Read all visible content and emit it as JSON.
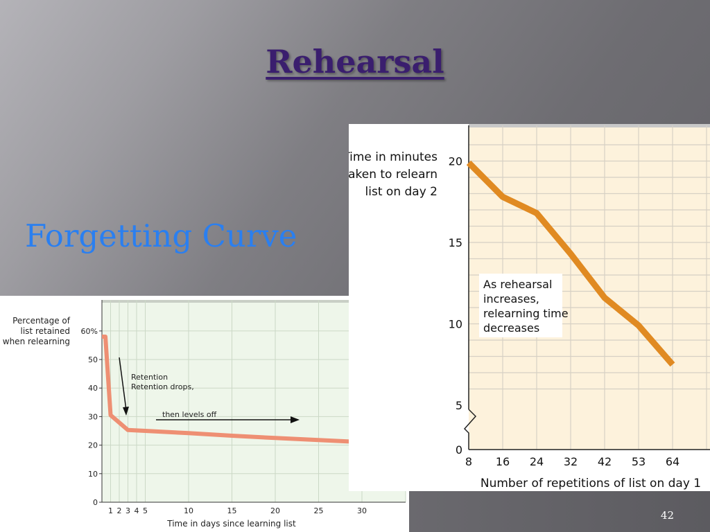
{
  "slide": {
    "title": "Rehearsal",
    "subtitle": "Forgetting Curve",
    "page_number": "42"
  },
  "colors": {
    "title": "#3a1e6e",
    "subtitle": "#2a7ff0",
    "forgetting_curve_line": "#ee8f73",
    "rehearsal_line": "#e08a22",
    "rehearsal_plot_bg": "#fdf2dc",
    "forgetting_plot_bg": "#eef6ea"
  },
  "chart_data": [
    {
      "type": "line",
      "title": "",
      "ylabel": "Percentage of list retained when relearning",
      "xlabel": "Time in days since learning list",
      "ylim": [
        0,
        60
      ],
      "xlim": [
        0,
        30
      ],
      "y_ticks": [
        "0",
        "10",
        "20",
        "30",
        "40",
        "50",
        "60%"
      ],
      "x_ticks": [
        "1",
        "2",
        "3",
        "4",
        "5",
        "10",
        "15",
        "20",
        "25",
        "30"
      ],
      "x": [
        0,
        0.4,
        1,
        3,
        5,
        10,
        15,
        20,
        25,
        29
      ],
      "y": [
        58,
        58,
        30.5,
        25.3,
        25,
        24.2,
        23.3,
        22.5,
        21.8,
        21.2
      ],
      "grid": true,
      "annotations": [
        "Retention drops,",
        "then levels off"
      ]
    },
    {
      "type": "line",
      "title": "",
      "ylabel": "Time in minutes taken to relearn list on day 2",
      "xlabel": "Number of repetitions of list on day 1",
      "ylim": [
        0,
        20
      ],
      "x_ticks": [
        "8",
        "16",
        "24",
        "32",
        "42",
        "53",
        "64"
      ],
      "y_ticks": [
        "0",
        "5",
        "10",
        "15",
        "20"
      ],
      "categories": [
        "8",
        "16",
        "24",
        "32",
        "42",
        "53",
        "64"
      ],
      "values": [
        19.9,
        17.8,
        16.8,
        14.3,
        11.6,
        9.9,
        7.5
      ],
      "grid": true,
      "axis_break": true,
      "annotation": "As rehearsal increases, relearning time decreases"
    }
  ]
}
